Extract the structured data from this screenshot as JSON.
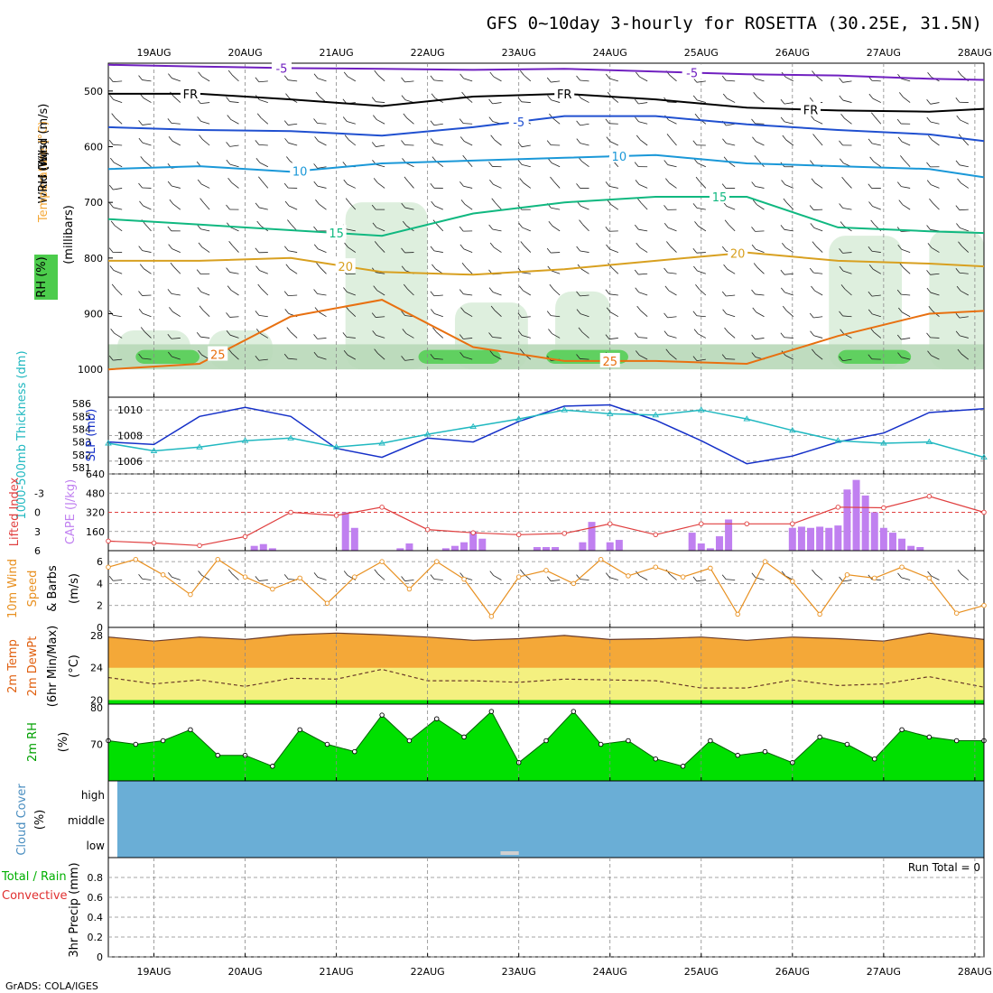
{
  "title": "GFS 0~10day 3-hourly for ROSETTA (30.25E, 31.5N)",
  "credit": "GrADS: COLA/IGES",
  "colors": {
    "axis": "#000000",
    "grid": "#888888",
    "slp": "#1530c8",
    "thick": "#20b8c0",
    "li": "#e04040",
    "cape": "#c080f0",
    "wind": "#e89020",
    "temp": "#f4a838",
    "dew": "#f4f080",
    "rh": "#00e000",
    "cloud": "#6aaed6",
    "t500": "#7020c0",
    "t600": "#2050d0",
    "t700": "#1a98d8",
    "t750": "#10b880",
    "t800": "#d8a020",
    "t950": "#e87010"
  },
  "chart_data": {
    "type": "line",
    "dates": [
      "19AUG",
      "20AUG",
      "21AUG",
      "22AUG",
      "23AUG",
      "24AUG",
      "25AUG",
      "26AUG",
      "27AUG",
      "28AUG"
    ],
    "xlim": [
      0,
      9.6
    ],
    "panels": [
      {
        "id": "upper-air",
        "ylabels": [
          "Wind (m/s)",
          "Temperature (°C)",
          "RH (%)",
          "(millibars)"
        ],
        "yticks": [
          "500",
          "600",
          "700",
          "800",
          "900",
          "1000"
        ],
        "ylim": [
          450,
          1050
        ],
        "contours": [
          {
            "name": "-5",
            "label": "-5",
            "color": "#7020c0",
            "x": [
              0,
              1,
              2,
              3,
              4,
              5,
              6,
              7,
              8,
              9,
              9.6
            ],
            "y": [
              453,
              456,
              459,
              460,
              462,
              460,
              465,
              470,
              472,
              478,
              480
            ],
            "labels_at": [
              1.9,
              6.4
            ]
          },
          {
            "name": "FR",
            "label": "FR",
            "color": "#000000",
            "x": [
              0,
              1,
              2,
              3,
              4,
              5,
              6,
              7,
              8,
              9,
              9.6
            ],
            "y": [
              505,
              505,
              515,
              527,
              510,
              505,
              515,
              530,
              535,
              537,
              532
            ],
            "labels_at": [
              0.9,
              5.0,
              7.7
            ]
          },
          {
            "name": "-5",
            "label": "-5",
            "color": "#2050d0",
            "x": [
              0,
              1,
              2,
              3,
              4,
              5,
              6,
              7,
              8,
              9,
              9.6
            ],
            "y": [
              565,
              570,
              572,
              580,
              565,
              545,
              545,
              560,
              570,
              578,
              590
            ],
            "labels_at": [
              4.5
            ]
          },
          {
            "name": "10",
            "label": "10",
            "color": "#1a98d8",
            "x": [
              0,
              1,
              2,
              3,
              4,
              5,
              6,
              7,
              8,
              9,
              9.6
            ],
            "y": [
              640,
              635,
              645,
              630,
              625,
              620,
              615,
              630,
              635,
              640,
              655
            ],
            "labels_at": [
              2.1,
              5.6
            ]
          },
          {
            "name": "15",
            "label": "15",
            "color": "#10b880",
            "x": [
              0,
              1,
              2,
              3,
              4,
              5,
              6,
              7,
              8,
              9,
              9.6
            ],
            "y": [
              730,
              740,
              750,
              760,
              720,
              700,
              690,
              690,
              745,
              752,
              755
            ],
            "labels_at": [
              2.5,
              6.7
            ]
          },
          {
            "name": "20",
            "label": "20",
            "color": "#d8a020",
            "x": [
              0,
              1,
              2,
              3,
              4,
              5,
              6,
              7,
              8,
              9,
              9.6
            ],
            "y": [
              805,
              805,
              800,
              825,
              830,
              820,
              805,
              790,
              805,
              810,
              815
            ],
            "labels_at": [
              2.6,
              6.9
            ]
          },
          {
            "name": "25",
            "label": "25",
            "color": "#e87010",
            "x": [
              0,
              1,
              2,
              3,
              4,
              5,
              6,
              7,
              8,
              9,
              9.6
            ],
            "y": [
              1000,
              990,
              905,
              875,
              960,
              985,
              985,
              990,
              940,
              900,
              895
            ],
            "labels_at": [
              1.2,
              5.5
            ]
          }
        ]
      },
      {
        "id": "slp-thickness",
        "ylabels": [
          "SLP (mb)",
          "1000-500mb Thickness (dm)"
        ],
        "yticks_left": [
          "581",
          "582",
          "583",
          "584",
          "585",
          "586"
        ],
        "yticks_right": [
          "1006",
          "1008",
          "1010"
        ],
        "ylim_right": [
          1005,
          1011
        ],
        "series": [
          {
            "name": "SLP",
            "color": "#1530c8",
            "x": [
              0,
              0.5,
              1,
              1.5,
              2,
              2.5,
              3,
              3.5,
              4,
              4.5,
              5,
              5.5,
              6,
              6.5,
              7,
              7.5,
              8,
              8.5,
              9,
              9.6
            ],
            "y": [
              1007.5,
              1007.3,
              1009.5,
              1010.2,
              1009.5,
              1007,
              1006.3,
              1007.8,
              1007.5,
              1009.1,
              1010.3,
              1010.4,
              1009.2,
              1007.6,
              1005.8,
              1006.4,
              1007.5,
              1008.2,
              1009.8,
              1010.1
            ]
          },
          {
            "name": "Thickness",
            "color": "#20b8c0",
            "x": [
              0,
              0.5,
              1,
              1.5,
              2,
              2.5,
              3,
              3.5,
              4,
              4.5,
              5,
              5.5,
              6,
              6.5,
              7,
              7.5,
              8,
              8.5,
              9,
              9.6
            ],
            "y": [
              582.9,
              582.3,
              582.6,
              583.1,
              583.3,
              582.6,
              582.9,
              583.6,
              584.2,
              584.8,
              585.5,
              585.2,
              585.1,
              585.5,
              584.8,
              583.9,
              583.1,
              582.9,
              583.0,
              581.8
            ]
          }
        ]
      },
      {
        "id": "lifted-cape",
        "ylabels": [
          "Lifted Index",
          "CAPE (J/kg)"
        ],
        "yticks_left": [
          "-3",
          "0",
          "3",
          "6"
        ],
        "yticks_right": [
          "160",
          "320",
          "480",
          "640"
        ],
        "ylim_li": [
          -6,
          6
        ],
        "ylim_cape": [
          0,
          640
        ],
        "li_series": {
          "name": "Lifted Index",
          "x": [
            0,
            0.5,
            1,
            1.5,
            2,
            2.5,
            3,
            3.5,
            4,
            4.5,
            5,
            5.5,
            6,
            6.5,
            7,
            7.5,
            8,
            8.5,
            9,
            9.6
          ],
          "y": [
            4.5,
            4.8,
            5.2,
            3.8,
            0,
            0.5,
            -0.8,
            2.7,
            3.2,
            3.5,
            3.3,
            1.8,
            3.5,
            1.8,
            1.8,
            1.8,
            -0.8,
            -0.7,
            -2.5,
            0
          ]
        },
        "cape_bars": {
          "name": "CAPE",
          "x": [
            1.6,
            1.7,
            1.8,
            2.6,
            2.7,
            3.2,
            3.3,
            3.7,
            3.8,
            3.9,
            4.0,
            4.1,
            4.7,
            4.8,
            4.9,
            5.2,
            5.3,
            5.5,
            5.6,
            6.4,
            6.5,
            6.6,
            6.7,
            6.8,
            7.5,
            7.6,
            7.7,
            7.8,
            7.9,
            8.0,
            8.1,
            8.2,
            8.3,
            8.4,
            8.5,
            8.6,
            8.7,
            8.8,
            8.9
          ],
          "y": [
            40,
            55,
            20,
            320,
            190,
            20,
            60,
            20,
            40,
            70,
            160,
            100,
            30,
            30,
            30,
            70,
            240,
            70,
            90,
            150,
            60,
            20,
            120,
            260,
            190,
            200,
            190,
            200,
            190,
            210,
            510,
            590,
            460,
            320,
            190,
            150,
            100,
            40,
            30
          ]
        }
      },
      {
        "id": "wind10m",
        "ylabels": [
          "10m Wind",
          "Speed",
          "& Barbs",
          "(m/s)"
        ],
        "yticks": [
          "0",
          "2",
          "4",
          "6"
        ],
        "ylim": [
          0,
          7
        ],
        "series": [
          {
            "name": "10m Wind Speed",
            "color": "#e89020",
            "x": [
              0,
              0.3,
              0.6,
              0.9,
              1.2,
              1.5,
              1.8,
              2.1,
              2.4,
              2.7,
              3.0,
              3.3,
              3.6,
              3.9,
              4.2,
              4.5,
              4.8,
              5.1,
              5.4,
              5.7,
              6.0,
              6.3,
              6.6,
              6.9,
              7.2,
              7.5,
              7.8,
              8.1,
              8.4,
              8.7,
              9.0,
              9.3,
              9.6
            ],
            "y": [
              5.5,
              6.2,
              4.8,
              3.0,
              6.2,
              4.6,
              3.5,
              4.5,
              2.2,
              4.6,
              6.0,
              3.5,
              6.0,
              4.4,
              1.0,
              4.6,
              5.2,
              4.0,
              6.2,
              4.7,
              5.5,
              4.6,
              5.4,
              1.2,
              6.0,
              4.2,
              1.2,
              4.8,
              4.5,
              5.5,
              4.5,
              1.3,
              2.0
            ]
          }
        ]
      },
      {
        "id": "temp-dew",
        "ylabels": [
          "2m Temp",
          "2m DewPt",
          "(6hr Min/Max)",
          "(°C)"
        ],
        "yticks": [
          "20",
          "24",
          "28"
        ],
        "ylim": [
          19.5,
          29
        ],
        "series": [
          {
            "name": "2m Temp",
            "color": "#f4a838",
            "x": [
              0,
              0.5,
              1,
              1.5,
              2,
              2.5,
              3,
              3.5,
              4,
              4.5,
              5,
              5.5,
              6,
              6.5,
              7,
              7.5,
              8,
              8.5,
              9,
              9.6
            ],
            "y": [
              27.8,
              27.3,
              27.8,
              27.5,
              28.1,
              28.3,
              28.1,
              27.8,
              27.4,
              27.6,
              28.0,
              27.5,
              27.6,
              27.8,
              27.4,
              27.8,
              27.6,
              27.3,
              28.3,
              27.5
            ]
          },
          {
            "name": "2m DewPt",
            "color": "#f4f080",
            "x": [
              0,
              0.5,
              1,
              1.5,
              2,
              2.5,
              3,
              3.5,
              4,
              4.5,
              5,
              5.5,
              6,
              6.5,
              7,
              7.5,
              8,
              8.5,
              9,
              9.6
            ],
            "y": [
              22.8,
              22.0,
              22.5,
              21.7,
              22.7,
              22.6,
              23.8,
              22.4,
              22.4,
              22.2,
              22.6,
              22.5,
              22.4,
              21.5,
              21.5,
              22.5,
              21.8,
              22.0,
              22.9,
              21.6
            ]
          }
        ]
      },
      {
        "id": "rh2m",
        "ylabels": [
          "2m RH",
          "(%)"
        ],
        "yticks": [
          "70",
          "80"
        ],
        "ylim": [
          60,
          81
        ],
        "series": [
          {
            "name": "2m RH",
            "color": "#00e000",
            "x": [
              0,
              0.3,
              0.6,
              0.9,
              1.2,
              1.5,
              1.8,
              2.1,
              2.4,
              2.7,
              3.0,
              3.3,
              3.6,
              3.9,
              4.2,
              4.5,
              4.8,
              5.1,
              5.4,
              5.7,
              6.0,
              6.3,
              6.6,
              6.9,
              7.2,
              7.5,
              7.8,
              8.1,
              8.4,
              8.7,
              9.0,
              9.3,
              9.6
            ],
            "y": [
              71,
              70,
              71,
              74,
              67,
              67,
              64,
              74,
              70,
              68,
              78,
              71,
              77,
              72,
              79,
              65,
              71,
              79,
              70,
              71,
              66,
              64,
              71,
              67,
              68,
              65,
              72,
              70,
              66,
              74,
              72,
              71,
              71
            ]
          }
        ]
      },
      {
        "id": "cloud",
        "ylabels": [
          "Cloud Cover",
          "(%)"
        ],
        "levels": [
          "high",
          "middle",
          "low"
        ]
      },
      {
        "id": "precip",
        "ylabels": [
          "3hr Precip (mm)",
          "Total / Rain",
          "Convective"
        ],
        "yticks": [
          "0",
          "0.2",
          "0.4",
          "0.6",
          "0.8"
        ],
        "ylim": [
          0,
          1
        ],
        "run_total": "Run Total = 0"
      }
    ]
  }
}
